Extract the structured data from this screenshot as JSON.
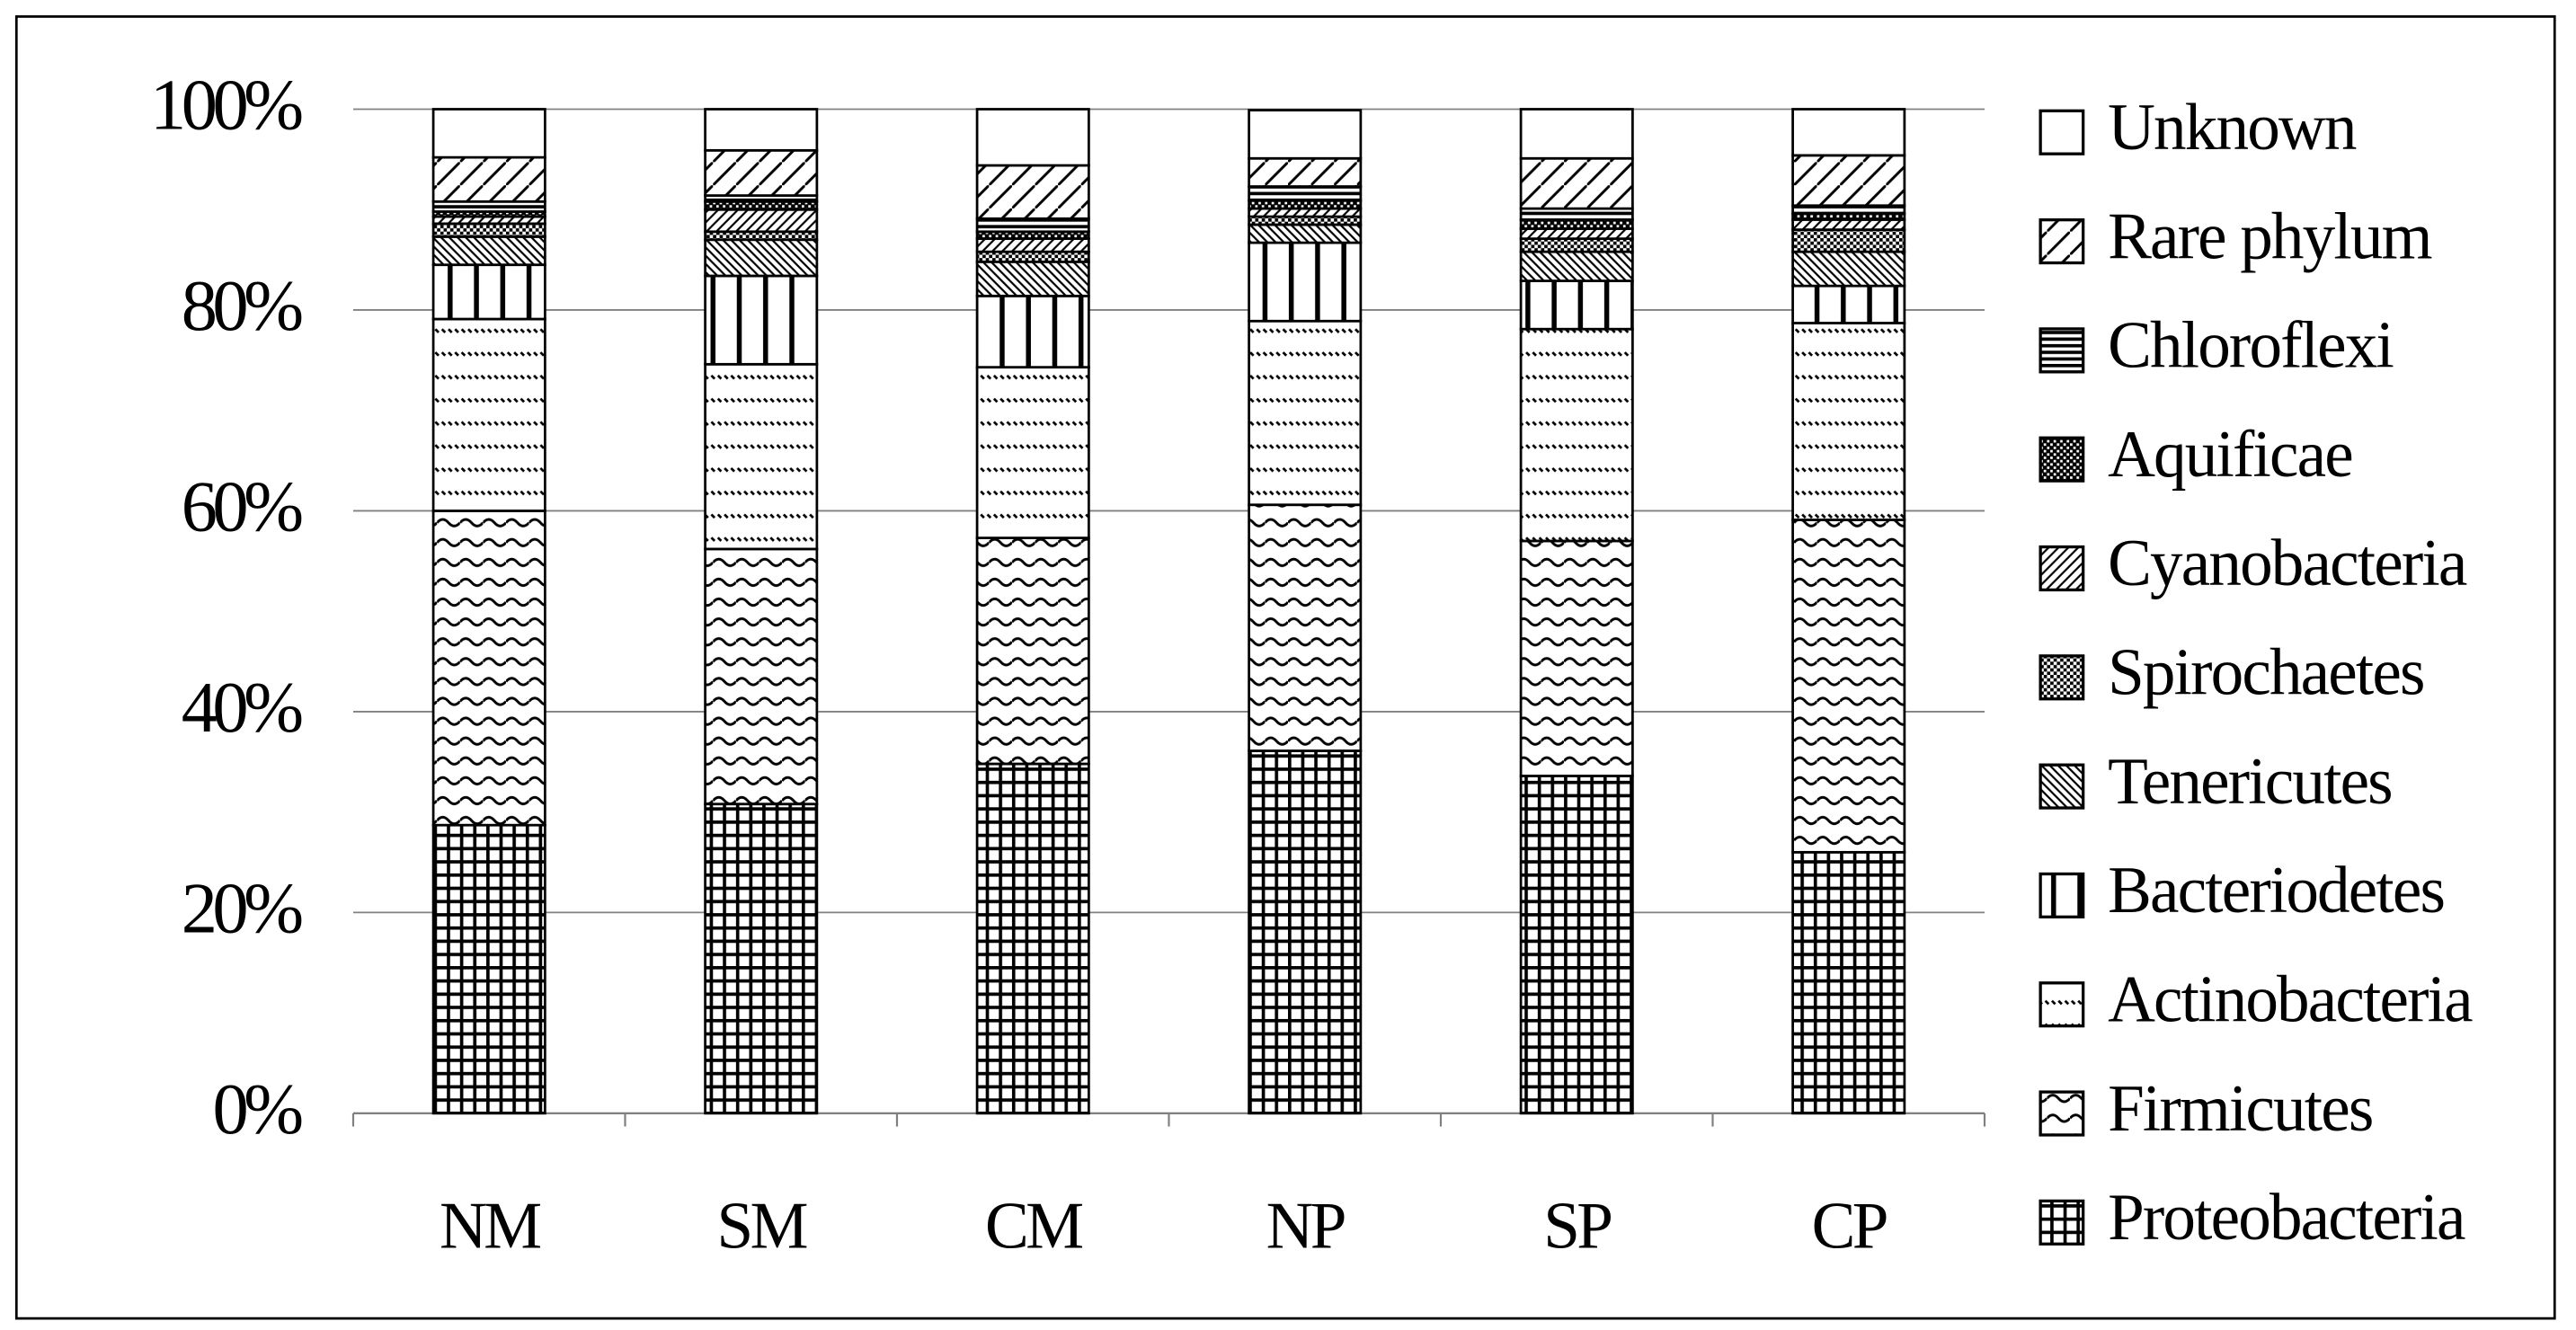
{
  "chart_data": {
    "type": "stacked_bar",
    "categories": [
      "NM",
      "SM",
      "CM",
      "NP",
      "SP",
      "CP"
    ],
    "ylim": [
      0,
      100
    ],
    "yticks": [
      {
        "value": 0,
        "label": "0%"
      },
      {
        "value": 20,
        "label": "20%"
      },
      {
        "value": 40,
        "label": "40%"
      },
      {
        "value": 60,
        "label": "60%"
      },
      {
        "value": 80,
        "label": "80%"
      },
      {
        "value": 100,
        "label": "100%"
      }
    ],
    "grid": true,
    "legend": "right",
    "series": [
      {
        "name": "Proteobacteria",
        "color": "#000000",
        "pattern": "grid",
        "values": [
          28.7,
          30.8,
          34.8,
          36.1,
          33.6,
          26.0
        ]
      },
      {
        "name": "Firmicutes",
        "color": "#000000",
        "pattern": "wave",
        "values": [
          31.3,
          25.4,
          22.5,
          24.5,
          23.4,
          33.1
        ]
      },
      {
        "name": "Actinobacteria",
        "color": "#000000",
        "pattern": "dash",
        "values": [
          19.1,
          18.4,
          17.0,
          18.3,
          21.1,
          19.6
        ]
      },
      {
        "name": "Bacteriodetes",
        "color": "#000000",
        "pattern": "vertical",
        "values": [
          5.4,
          8.8,
          7.1,
          7.8,
          4.8,
          3.7
        ]
      },
      {
        "name": "Tenericutes",
        "color": "#000000",
        "pattern": "backdiag",
        "values": [
          2.8,
          3.6,
          3.4,
          1.8,
          2.9,
          3.4
        ]
      },
      {
        "name": "Spirochaetes",
        "color": "#000000",
        "pattern": "check",
        "values": [
          1.3,
          0.8,
          1.0,
          0.8,
          1.3,
          2.2
        ]
      },
      {
        "name": "Cyanobacteria",
        "color": "#000000",
        "pattern": "diag",
        "values": [
          0.7,
          2.2,
          1.3,
          0.8,
          1.0,
          1.0
        ]
      },
      {
        "name": "Aquificae",
        "color": "#000000",
        "pattern": "darkcheck",
        "values": [
          0.5,
          0.8,
          0.7,
          0.8,
          0.9,
          0.6
        ]
      },
      {
        "name": "Chloroflexi",
        "color": "#000000",
        "pattern": "horizontal",
        "values": [
          1.0,
          0.6,
          1.3,
          1.4,
          1.1,
          0.8
        ]
      },
      {
        "name": "Rare phylum",
        "color": "#000000",
        "pattern": "widediag",
        "values": [
          4.4,
          4.5,
          5.3,
          2.8,
          5.0,
          5.0
        ]
      },
      {
        "name": "Unknown",
        "color": "#000000",
        "pattern": "none",
        "values": [
          4.8,
          4.1,
          5.6,
          4.8,
          4.9,
          4.6
        ]
      }
    ]
  }
}
